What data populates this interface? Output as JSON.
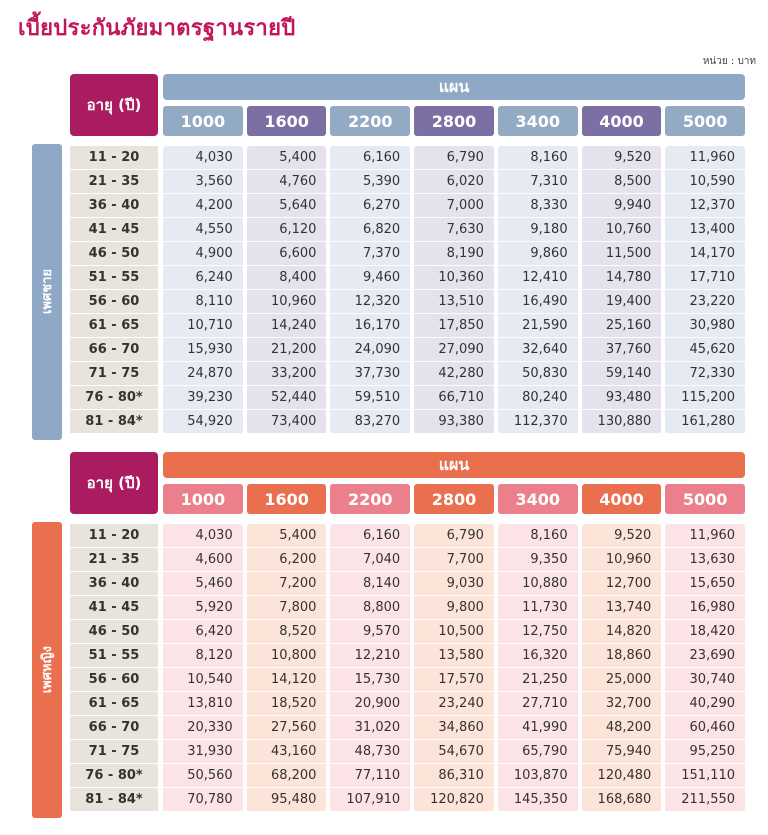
{
  "title": "เบี้ยประกันภัยมาตรฐานรายปี",
  "unit": "หน่วย : บาท",
  "plans": [
    "1000",
    "1600",
    "2200",
    "2800",
    "3400",
    "4000",
    "5000"
  ],
  "age_header": "อายุ (ปี)",
  "plan_header": "แผน",
  "ages": [
    "11 - 20",
    "21 - 35",
    "36 - 40",
    "41 - 45",
    "46 - 50",
    "51 - 55",
    "56 - 60",
    "61 - 65",
    "66 - 70",
    "71 - 75",
    "76 - 80*",
    "81 - 84*"
  ],
  "male": {
    "label": "เพศชาย",
    "rows": [
      [
        "4,030",
        "5,400",
        "6,160",
        "6,790",
        "8,160",
        "9,520",
        "11,960"
      ],
      [
        "3,560",
        "4,760",
        "5,390",
        "6,020",
        "7,310",
        "8,500",
        "10,590"
      ],
      [
        "4,200",
        "5,640",
        "6,270",
        "7,000",
        "8,330",
        "9,940",
        "12,370"
      ],
      [
        "4,550",
        "6,120",
        "6,820",
        "7,630",
        "9,180",
        "10,760",
        "13,400"
      ],
      [
        "4,900",
        "6,600",
        "7,370",
        "8,190",
        "9,860",
        "11,500",
        "14,170"
      ],
      [
        "6,240",
        "8,400",
        "9,460",
        "10,360",
        "12,410",
        "14,780",
        "17,710"
      ],
      [
        "8,110",
        "10,960",
        "12,320",
        "13,510",
        "16,490",
        "19,400",
        "23,220"
      ],
      [
        "10,710",
        "14,240",
        "16,170",
        "17,850",
        "21,590",
        "25,160",
        "30,980"
      ],
      [
        "15,930",
        "21,200",
        "24,090",
        "27,090",
        "32,640",
        "37,760",
        "45,620"
      ],
      [
        "24,870",
        "33,200",
        "37,730",
        "42,280",
        "50,830",
        "59,140",
        "72,330"
      ],
      [
        "39,230",
        "52,440",
        "59,510",
        "66,710",
        "80,240",
        "93,480",
        "115,200"
      ],
      [
        "54,920",
        "73,400",
        "83,270",
        "93,380",
        "112,370",
        "130,880",
        "161,280"
      ]
    ]
  },
  "female": {
    "label": "เพศหญิง",
    "rows": [
      [
        "4,030",
        "5,400",
        "6,160",
        "6,790",
        "8,160",
        "9,520",
        "11,960"
      ],
      [
        "4,600",
        "6,200",
        "7,040",
        "7,700",
        "9,350",
        "10,960",
        "13,630"
      ],
      [
        "5,460",
        "7,200",
        "8,140",
        "9,030",
        "10,880",
        "12,700",
        "15,650"
      ],
      [
        "5,920",
        "7,800",
        "8,800",
        "9,800",
        "11,730",
        "13,740",
        "16,980"
      ],
      [
        "6,420",
        "8,520",
        "9,570",
        "10,500",
        "12,750",
        "14,820",
        "18,420"
      ],
      [
        "8,120",
        "10,800",
        "12,210",
        "13,580",
        "16,320",
        "18,860",
        "23,690"
      ],
      [
        "10,540",
        "14,120",
        "15,730",
        "17,570",
        "21,250",
        "25,000",
        "30,740"
      ],
      [
        "13,810",
        "18,520",
        "20,900",
        "23,240",
        "27,710",
        "32,700",
        "40,290"
      ],
      [
        "20,330",
        "27,560",
        "31,020",
        "34,860",
        "41,990",
        "48,200",
        "60,460"
      ],
      [
        "31,930",
        "43,160",
        "48,730",
        "54,670",
        "65,790",
        "75,940",
        "95,250"
      ],
      [
        "50,560",
        "68,200",
        "77,110",
        "86,310",
        "103,870",
        "120,480",
        "151,110"
      ],
      [
        "70,780",
        "95,480",
        "107,910",
        "120,820",
        "145,350",
        "168,680",
        "211,550"
      ]
    ]
  },
  "colors": {
    "title": "#c2185b",
    "male_bar": "#8ea8c6",
    "female_bar": "#e96e4c",
    "age_header": "#ab1b5f"
  }
}
